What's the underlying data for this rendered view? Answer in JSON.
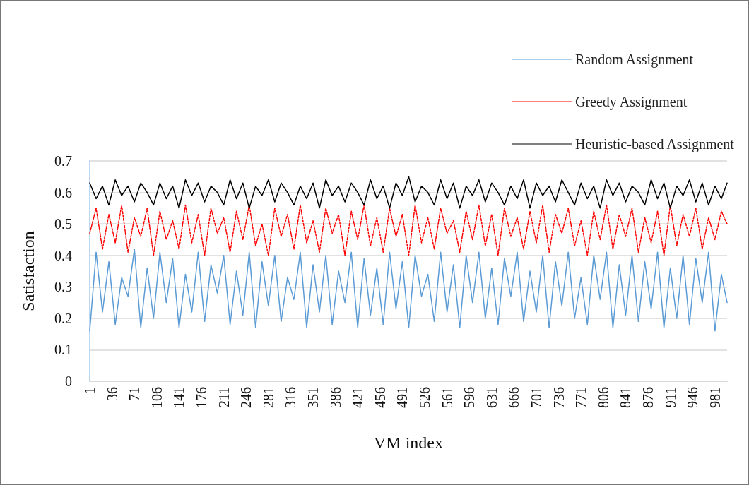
{
  "chart_data": {
    "type": "line",
    "xlabel": "VM index",
    "ylabel": "Satisfaction",
    "x": [
      1,
      11,
      21,
      31,
      41,
      51,
      61,
      71,
      81,
      91,
      101,
      111,
      121,
      131,
      141,
      151,
      161,
      171,
      181,
      191,
      201,
      211,
      221,
      231,
      241,
      251,
      261,
      271,
      281,
      291,
      301,
      311,
      321,
      331,
      341,
      351,
      361,
      371,
      381,
      391,
      401,
      411,
      421,
      431,
      441,
      451,
      461,
      471,
      481,
      491,
      501,
      511,
      521,
      531,
      541,
      551,
      561,
      571,
      581,
      591,
      601,
      611,
      621,
      631,
      641,
      651,
      661,
      671,
      681,
      691,
      701,
      711,
      721,
      731,
      741,
      751,
      761,
      771,
      781,
      791,
      801,
      811,
      821,
      831,
      841,
      851,
      861,
      871,
      881,
      891,
      901,
      911,
      921,
      931,
      941,
      951,
      961,
      971,
      981,
      991,
      1000
    ],
    "xlim": [
      1,
      1000
    ],
    "xticks": [
      1,
      36,
      71,
      106,
      141,
      176,
      211,
      246,
      281,
      316,
      351,
      386,
      421,
      456,
      491,
      526,
      561,
      596,
      631,
      666,
      701,
      736,
      771,
      806,
      841,
      876,
      911,
      946,
      981
    ],
    "ylim": [
      0,
      0.7
    ],
    "yticks": [
      0,
      0.1,
      0.2,
      0.3,
      0.4,
      0.5,
      0.6,
      0.7
    ],
    "grid": "y",
    "legend": "top right",
    "marker": "none",
    "series": [
      {
        "name": "Random Assignment",
        "color": "#5b9bd5",
        "line_style": "solid",
        "values": [
          0.16,
          0.41,
          0.22,
          0.38,
          0.18,
          0.33,
          0.27,
          0.42,
          0.17,
          0.36,
          0.2,
          0.41,
          0.25,
          0.39,
          0.17,
          0.34,
          0.22,
          0.41,
          0.19,
          0.37,
          0.28,
          0.4,
          0.18,
          0.35,
          0.21,
          0.41,
          0.17,
          0.38,
          0.24,
          0.4,
          0.19,
          0.33,
          0.26,
          0.41,
          0.17,
          0.37,
          0.22,
          0.4,
          0.18,
          0.35,
          0.25,
          0.41,
          0.17,
          0.39,
          0.21,
          0.36,
          0.18,
          0.41,
          0.23,
          0.38,
          0.17,
          0.4,
          0.27,
          0.34,
          0.19,
          0.41,
          0.22,
          0.37,
          0.17,
          0.4,
          0.25,
          0.41,
          0.2,
          0.36,
          0.18,
          0.39,
          0.27,
          0.41,
          0.19,
          0.35,
          0.22,
          0.4,
          0.17,
          0.38,
          0.24,
          0.41,
          0.2,
          0.33,
          0.18,
          0.4,
          0.26,
          0.41,
          0.17,
          0.37,
          0.21,
          0.4,
          0.19,
          0.38,
          0.23,
          0.41,
          0.17,
          0.36,
          0.2,
          0.4,
          0.18,
          0.39,
          0.25,
          0.41,
          0.16,
          0.34,
          0.25
        ]
      },
      {
        "name": "Greedy Assignment",
        "color": "#ff0000",
        "line_style": "dashed",
        "values": [
          0.47,
          0.55,
          0.42,
          0.53,
          0.44,
          0.56,
          0.41,
          0.52,
          0.46,
          0.55,
          0.4,
          0.54,
          0.45,
          0.51,
          0.42,
          0.56,
          0.44,
          0.53,
          0.4,
          0.55,
          0.47,
          0.52,
          0.41,
          0.54,
          0.45,
          0.56,
          0.43,
          0.5,
          0.4,
          0.55,
          0.46,
          0.53,
          0.42,
          0.56,
          0.44,
          0.51,
          0.41,
          0.55,
          0.47,
          0.53,
          0.4,
          0.54,
          0.45,
          0.56,
          0.43,
          0.52,
          0.41,
          0.55,
          0.46,
          0.53,
          0.4,
          0.56,
          0.44,
          0.52,
          0.42,
          0.55,
          0.47,
          0.51,
          0.41,
          0.54,
          0.45,
          0.56,
          0.43,
          0.53,
          0.4,
          0.55,
          0.46,
          0.52,
          0.42,
          0.54,
          0.44,
          0.56,
          0.41,
          0.53,
          0.47,
          0.55,
          0.43,
          0.51,
          0.4,
          0.54,
          0.45,
          0.56,
          0.42,
          0.53,
          0.46,
          0.55,
          0.41,
          0.52,
          0.44,
          0.54,
          0.4,
          0.56,
          0.43,
          0.53,
          0.46,
          0.55,
          0.42,
          0.52,
          0.45,
          0.54,
          0.5
        ]
      },
      {
        "name": "Heuristic-based Assignment",
        "color": "#000000",
        "line_style": "solid",
        "values": [
          0.63,
          0.58,
          0.62,
          0.56,
          0.64,
          0.59,
          0.62,
          0.57,
          0.63,
          0.6,
          0.56,
          0.63,
          0.58,
          0.62,
          0.55,
          0.64,
          0.59,
          0.63,
          0.57,
          0.62,
          0.6,
          0.56,
          0.64,
          0.58,
          0.63,
          0.55,
          0.62,
          0.59,
          0.64,
          0.57,
          0.63,
          0.6,
          0.56,
          0.62,
          0.58,
          0.63,
          0.55,
          0.64,
          0.59,
          0.62,
          0.57,
          0.63,
          0.6,
          0.56,
          0.64,
          0.58,
          0.62,
          0.55,
          0.63,
          0.59,
          0.65,
          0.57,
          0.62,
          0.6,
          0.56,
          0.64,
          0.58,
          0.63,
          0.55,
          0.62,
          0.59,
          0.64,
          0.57,
          0.63,
          0.6,
          0.56,
          0.62,
          0.58,
          0.64,
          0.55,
          0.63,
          0.59,
          0.62,
          0.57,
          0.64,
          0.6,
          0.56,
          0.63,
          0.58,
          0.62,
          0.55,
          0.64,
          0.59,
          0.63,
          0.57,
          0.62,
          0.6,
          0.56,
          0.64,
          0.58,
          0.63,
          0.55,
          0.62,
          0.59,
          0.64,
          0.57,
          0.63,
          0.56,
          0.62,
          0.58,
          0.63
        ]
      }
    ]
  }
}
